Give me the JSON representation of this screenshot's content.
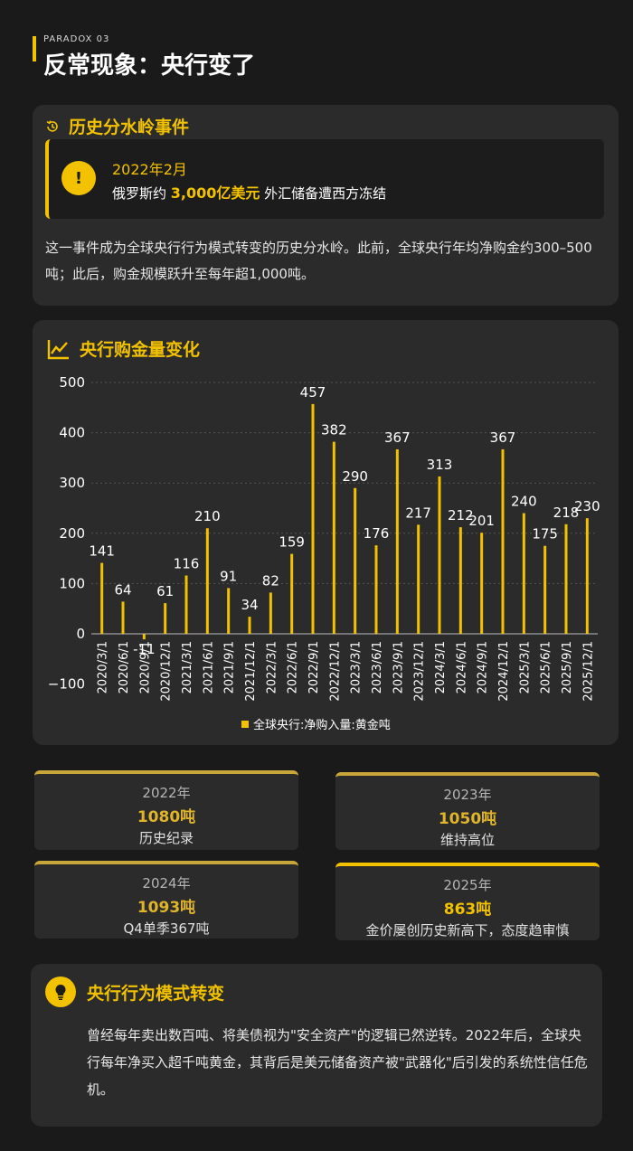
{
  "kicker": "PARADOX 03",
  "page_title": "反常现象：央行变了",
  "event": {
    "heading": "历史分水岭事件",
    "date": "2022年2月",
    "desc_prefix": "俄罗斯约 ",
    "desc_highlight": "3,000亿美元",
    "desc_suffix": " 外汇储备遭西方冻结",
    "body": "这一事件成为全球央行行为模式转变的历史分水岭。此前，全球央行年均净购金约300–500吨；此后，购金规模跃升至每年超1,000吨。"
  },
  "chart_heading": "央行购金量变化",
  "chart_data": {
    "type": "bar",
    "categories": [
      "2020/3/1",
      "2020/6/1",
      "2020/9/1",
      "2020/12/1",
      "2021/3/1",
      "2021/6/1",
      "2021/9/1",
      "2021/12/1",
      "2022/3/1",
      "2022/6/1",
      "2022/9/1",
      "2022/12/1",
      "2023/3/1",
      "2023/6/1",
      "2023/9/1",
      "2023/12/1",
      "2024/3/1",
      "2024/6/1",
      "2024/9/1",
      "2024/12/1",
      "2025/3/1",
      "2025/6/1",
      "2025/9/1",
      "2025/12/1"
    ],
    "series": [
      {
        "name": "全球央行:净购入量:黄金吨",
        "values": [
          141,
          64,
          -11,
          61,
          116,
          210,
          91,
          34,
          82,
          159,
          457,
          382,
          290,
          176,
          367,
          217,
          313,
          212,
          201,
          367,
          240,
          175,
          218,
          230
        ]
      }
    ],
    "value_labels": [
      "141",
      "64",
      "-11",
      "61",
      "116",
      "210",
      "91",
      "34",
      "82",
      "159",
      "457",
      "382",
      "290",
      "176",
      "367",
      "217",
      "313",
      "212",
      "201",
      "367",
      "240",
      "175",
      "218",
      "230"
    ],
    "ylim": [
      -100,
      500
    ],
    "yticks": [
      "500",
      "400",
      "300",
      "200",
      "100",
      "0",
      "−100"
    ],
    "ytick_values": [
      500,
      400,
      300,
      200,
      100,
      0,
      -100
    ],
    "grid": true,
    "legend_position": "bottom-center",
    "bar_color": "#f2c200"
  },
  "stats": [
    {
      "year": "2022年",
      "value": "1080吨",
      "sub": "历史纪录"
    },
    {
      "year": "2023年",
      "value": "1050吨",
      "sub": "维持高位"
    },
    {
      "year": "2024年",
      "value": "1093吨",
      "sub": "Q4单季367吨"
    },
    {
      "year": "2025年",
      "value": "863吨",
      "sub": "金价屡创历史新高下，态度趋审慎"
    }
  ],
  "shift": {
    "title": "央行行为模式转变",
    "body": "曾经每年卖出数百吨、将美债视为\"安全资产\"的逻辑已然逆转。2022年后，全球央行每年净买入超千吨黄金，其背后是美元储备资产被\"武器化\"后引发的系统性信任危机。"
  },
  "colors": {
    "accent": "#f2c200",
    "card": "#2b2b2b",
    "background": "#1a1a1a"
  }
}
